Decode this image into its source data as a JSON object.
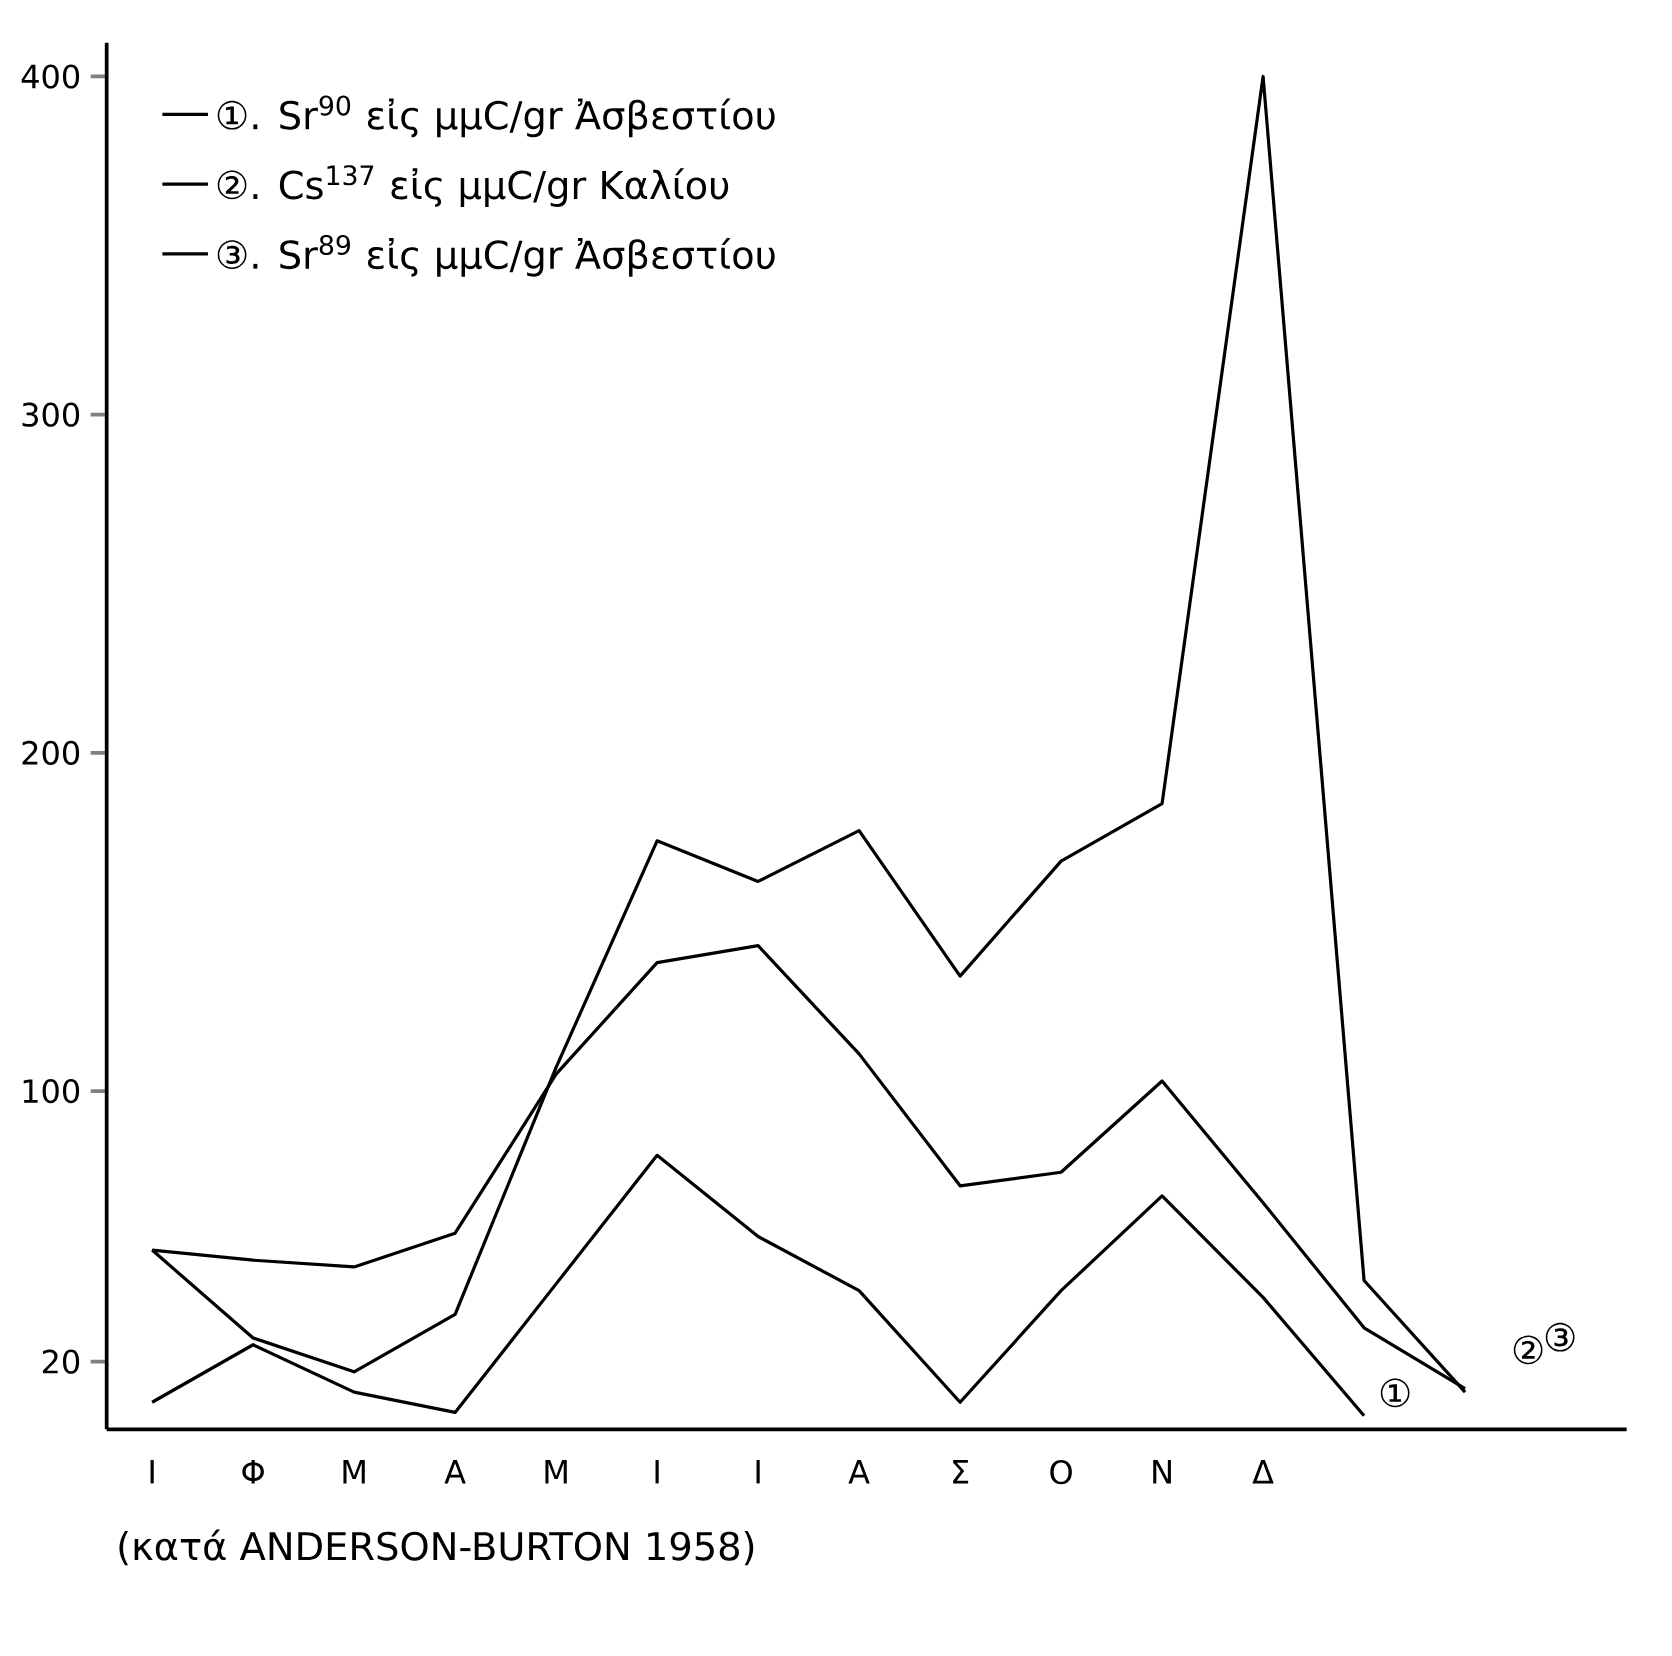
{
  "chart_data": {
    "type": "line",
    "categories": [
      "Ι",
      "Φ",
      "Μ",
      "Α",
      "Μ",
      "Ι",
      "Ι",
      "Α",
      "Σ",
      "Ο",
      "Ν",
      "Δ",
      null,
      null
    ],
    "series": [
      {
        "name": "①. Sr$^{90}$ εἰς μμC/gr Ἀσβεστίου",
        "color": "#000000",
        "values": [
          8,
          25,
          11,
          5,
          43,
          81,
          57,
          41,
          8,
          41,
          69,
          39,
          4,
          null
        ]
      },
      {
        "name": "②. Cs$^{137}$ εἰς μμC/gr Καλίου",
        "color": "#000000",
        "values": [
          53,
          50,
          48,
          58,
          105,
          138,
          143,
          111,
          72,
          76,
          103,
          67,
          30,
          12
        ]
      },
      {
        "name": "③. Sr$^{89}$ εἰς μμC/gr Ἀσβεστίου",
        "color": "#000000",
        "values": [
          53,
          27,
          17,
          34,
          107,
          174,
          162,
          177,
          134,
          168,
          185,
          400,
          44,
          11
        ]
      }
    ],
    "ylim": [
      0,
      410
    ],
    "yticks": [
      20,
      100,
      200,
      300,
      400
    ],
    "legend": "top left",
    "annotations": [
      "(κατά ANDERSON-BURTON 1958)",
      "①",
      "②",
      "③"
    ]
  }
}
